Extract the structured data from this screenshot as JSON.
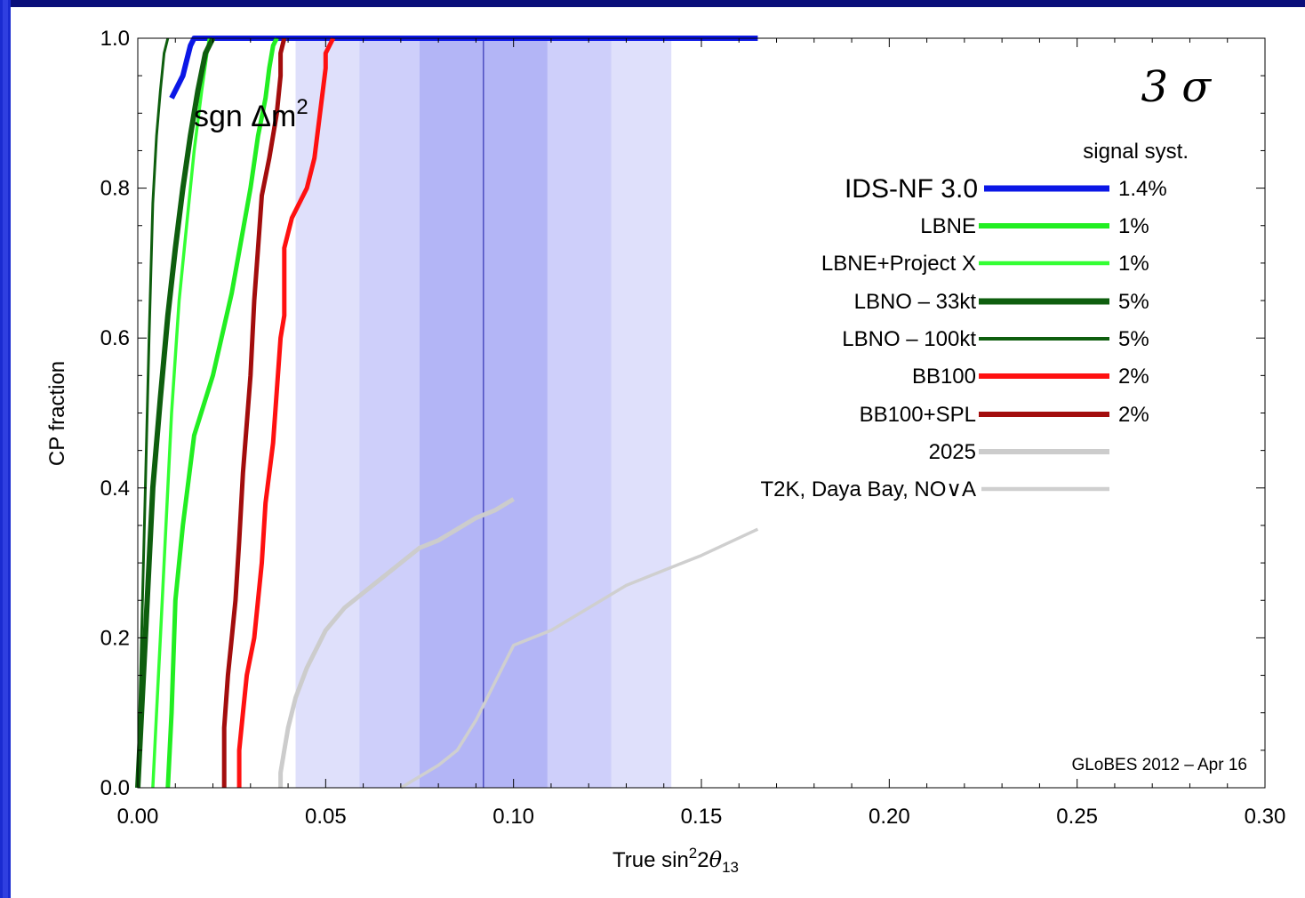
{
  "chart_data": {
    "type": "line",
    "xlabel_main": "True sin",
    "xlabel_sup": "2",
    "xlabel_mid": "2",
    "xlabel_theta": "θ",
    "xlabel_sub": "13",
    "ylabel": "CP fraction",
    "xlim": [
      0,
      0.3
    ],
    "ylim": [
      0,
      1
    ],
    "xticks": [
      "0.00",
      "0.05",
      "0.10",
      "0.15",
      "0.20",
      "0.25",
      "0.30"
    ],
    "xtick_values": [
      0,
      0.05,
      0.1,
      0.15,
      0.2,
      0.25,
      0.3
    ],
    "yticks": [
      "0.0",
      "0.2",
      "0.4",
      "0.6",
      "0.8",
      "1.0"
    ],
    "ytick_values": [
      0,
      0.2,
      0.4,
      0.6,
      0.8,
      1.0
    ],
    "sigma_label": "3 σ",
    "sgn_label_main": "sgn Δm",
    "sgn_label_sup": "2",
    "credit": "GLoBES 2012 – Apr 16",
    "legend_header": "signal syst.",
    "bands": [
      {
        "x0": 0.042,
        "x1": 0.142,
        "color": "#dfe0fb"
      },
      {
        "x0": 0.059,
        "x1": 0.126,
        "color": "#cecffa"
      },
      {
        "x0": 0.075,
        "x1": 0.109,
        "color": "#b3b5f6"
      }
    ],
    "best_fit_x": 0.092,
    "series": [
      {
        "name": "IDS-NF 3.0",
        "syst": "1.4%",
        "color": "#0b17e6",
        "width": 6,
        "x": [
          0.009,
          0.012,
          0.013,
          0.014,
          0.015,
          0.02,
          0.05,
          0.1,
          0.165
        ],
        "y": [
          0.92,
          0.95,
          0.97,
          0.99,
          1.0,
          1.0,
          1.0,
          1.0,
          1.0
        ]
      },
      {
        "name": "LBNE",
        "syst": "1%",
        "color": "#22ee22",
        "width": 5,
        "x": [
          0.008,
          0.009,
          0.01,
          0.012,
          0.015,
          0.02,
          0.025,
          0.03,
          0.032,
          0.034,
          0.035,
          0.036,
          0.037
        ],
        "y": [
          0.0,
          0.1,
          0.25,
          0.35,
          0.47,
          0.55,
          0.66,
          0.8,
          0.87,
          0.92,
          0.96,
          0.99,
          1.0
        ]
      },
      {
        "name": "LBNE+Project X",
        "syst": "1%",
        "color": "#33ff33",
        "width": 3.5,
        "x": [
          0.004,
          0.005,
          0.006,
          0.007,
          0.008,
          0.009,
          0.011,
          0.013,
          0.015,
          0.017,
          0.019
        ],
        "y": [
          0.0,
          0.1,
          0.2,
          0.3,
          0.4,
          0.5,
          0.65,
          0.75,
          0.85,
          0.93,
          1.0
        ]
      },
      {
        "name": "LBNO – 33kt",
        "syst": "5%",
        "color": "#0e5e0e",
        "width": 6,
        "x": [
          0.0,
          0.001,
          0.002,
          0.003,
          0.004,
          0.006,
          0.008,
          0.01,
          0.012,
          0.014,
          0.016,
          0.018,
          0.02
        ],
        "y": [
          0.0,
          0.1,
          0.2,
          0.3,
          0.4,
          0.52,
          0.63,
          0.72,
          0.8,
          0.87,
          0.93,
          0.98,
          1.0
        ]
      },
      {
        "name": "LBNO – 100kt",
        "syst": "5%",
        "color": "#0e5e0e",
        "width": 3,
        "x": [
          0.0,
          0.001,
          0.002,
          0.003,
          0.004,
          0.005,
          0.006,
          0.007,
          0.008
        ],
        "y": [
          0.0,
          0.2,
          0.4,
          0.6,
          0.78,
          0.87,
          0.93,
          0.98,
          1.0
        ]
      },
      {
        "name": "BB100",
        "syst": "2%",
        "color": "#ff1111",
        "width": 5,
        "x": [
          0.027,
          0.027,
          0.028,
          0.029,
          0.031,
          0.033,
          0.034,
          0.036,
          0.037,
          0.038,
          0.039,
          0.039,
          0.039,
          0.041,
          0.045,
          0.047,
          0.048,
          0.049,
          0.05,
          0.05,
          0.051,
          0.052
        ],
        "y": [
          0.0,
          0.05,
          0.1,
          0.15,
          0.2,
          0.3,
          0.38,
          0.46,
          0.53,
          0.6,
          0.63,
          0.68,
          0.72,
          0.76,
          0.8,
          0.84,
          0.88,
          0.92,
          0.96,
          0.98,
          0.99,
          1.0
        ]
      },
      {
        "name": "BB100+SPL",
        "syst": "2%",
        "color": "#a30d0d",
        "width": 5,
        "x": [
          0.023,
          0.023,
          0.024,
          0.025,
          0.026,
          0.027,
          0.028,
          0.03,
          0.031,
          0.032,
          0.033,
          0.035,
          0.037,
          0.038,
          0.038,
          0.039
        ],
        "y": [
          0.0,
          0.08,
          0.15,
          0.2,
          0.25,
          0.33,
          0.42,
          0.55,
          0.65,
          0.72,
          0.79,
          0.84,
          0.9,
          0.95,
          0.98,
          1.0
        ]
      },
      {
        "name": "2025",
        "syst": "",
        "color": "#cccccc",
        "width": 5,
        "x": [
          0.038,
          0.038,
          0.039,
          0.04,
          0.042,
          0.045,
          0.05,
          0.055,
          0.06,
          0.065,
          0.07,
          0.075,
          0.08,
          0.085,
          0.09,
          0.095,
          0.1
        ],
        "y": [
          0.0,
          0.02,
          0.05,
          0.08,
          0.12,
          0.16,
          0.21,
          0.24,
          0.26,
          0.28,
          0.3,
          0.32,
          0.33,
          0.345,
          0.36,
          0.37,
          0.385
        ]
      },
      {
        "name": "T2K, Daya Bay, NO∨A",
        "syst": "",
        "color": "#cfcfcf",
        "width": 3.5,
        "x": [
          0.07,
          0.075,
          0.08,
          0.085,
          0.09,
          0.095,
          0.1,
          0.105,
          0.11,
          0.12,
          0.13,
          0.14,
          0.15,
          0.165
        ],
        "y": [
          0.0,
          0.015,
          0.03,
          0.05,
          0.09,
          0.14,
          0.19,
          0.2,
          0.21,
          0.24,
          0.27,
          0.29,
          0.31,
          0.345
        ]
      }
    ]
  }
}
